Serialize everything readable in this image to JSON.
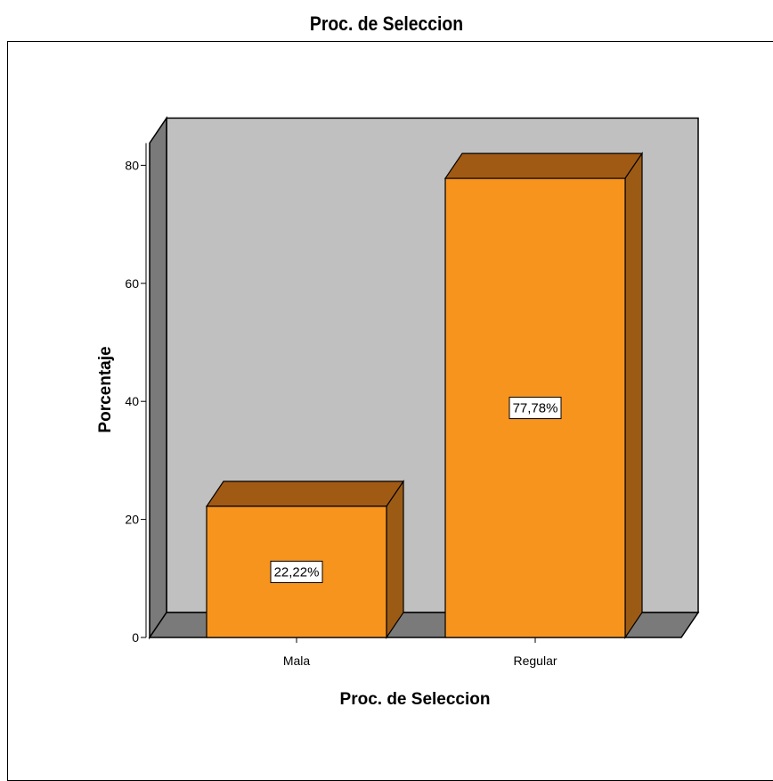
{
  "chart_data": {
    "type": "bar",
    "title": "Proc. de Seleccion",
    "xlabel": "Proc. de Seleccion",
    "ylabel": "Porcentaje",
    "categories": [
      "Mala",
      "Regular"
    ],
    "values": [
      22.22,
      77.78
    ],
    "data_labels": [
      "22,22%",
      "77,78%"
    ],
    "ylim": [
      0,
      88
    ],
    "yticks": [
      0,
      20,
      40,
      60,
      80
    ],
    "style": "3d",
    "colors": {
      "bar_front": "#f7941e",
      "bar_top": "#a05a14",
      "bar_side": "#9c5b15",
      "back_wall": "#c0c0c0",
      "side_wall": "#7a7a7a",
      "floor": "#7a7a7a"
    }
  }
}
